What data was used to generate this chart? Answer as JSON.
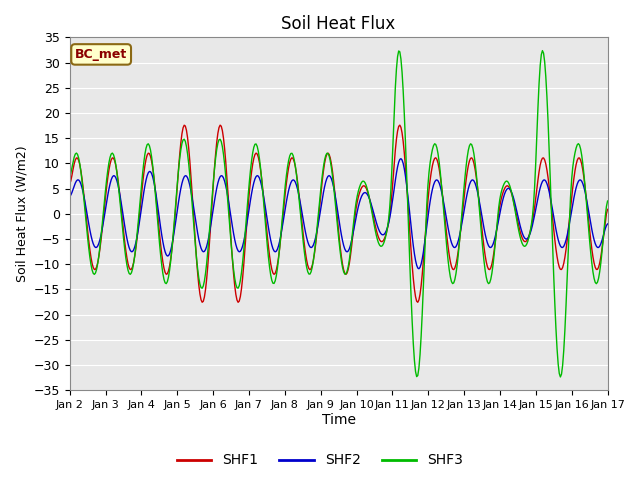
{
  "title": "Soil Heat Flux",
  "xlabel": "Time",
  "ylabel": "Soil Heat Flux (W/m2)",
  "ylim": [
    -35,
    35
  ],
  "yticks": [
    -35,
    -30,
    -25,
    -20,
    -15,
    -10,
    -5,
    0,
    5,
    10,
    15,
    20,
    25,
    30,
    35
  ],
  "xtick_labels": [
    "Jan 2",
    "Jan 3",
    "Jan 4",
    "Jan 5",
    "Jan 6",
    "Jan 7",
    "Jan 8",
    "Jan 9",
    "Jan 10",
    "Jan 11",
    "Jan 12",
    "Jan 13",
    "Jan 14",
    "Jan 15",
    "Jan 16",
    "Jan 17"
  ],
  "annotation": "BC_met",
  "figure_bg": "#ffffff",
  "plot_bg": "#e8e8e8",
  "grid_color": "#ffffff",
  "line_colors": [
    "#cc0000",
    "#0000cc",
    "#00bb00"
  ],
  "legend_labels": [
    "SHF1",
    "SHF2",
    "SHF3"
  ],
  "n_points": 480,
  "num_days": 15
}
